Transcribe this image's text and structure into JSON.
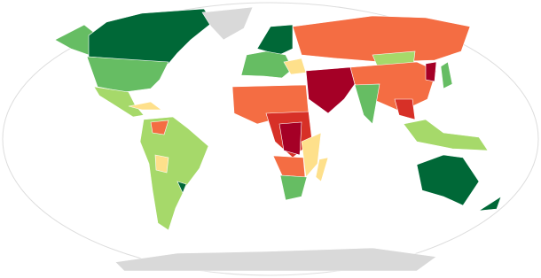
{
  "map": {
    "type": "choropleth",
    "palette": [
      "#006837",
      "#66bd63",
      "#a6d96a",
      "#fee08b",
      "#f46d43",
      "#d73027",
      "#a50026"
    ],
    "no_data": "#d9d9d9"
  }
}
